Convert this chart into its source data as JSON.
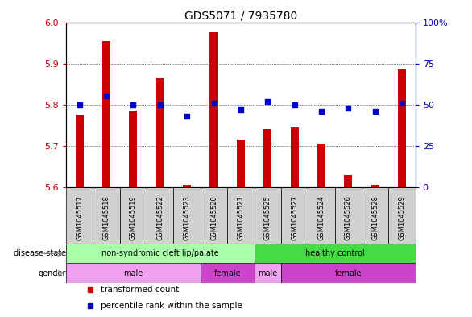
{
  "title": "GDS5071 / 7935780",
  "samples": [
    "GSM1045517",
    "GSM1045518",
    "GSM1045519",
    "GSM1045522",
    "GSM1045523",
    "GSM1045520",
    "GSM1045521",
    "GSM1045525",
    "GSM1045527",
    "GSM1045524",
    "GSM1045526",
    "GSM1045528",
    "GSM1045529"
  ],
  "transformed_count": [
    5.775,
    5.955,
    5.785,
    5.865,
    5.605,
    5.975,
    5.715,
    5.74,
    5.745,
    5.705,
    5.63,
    5.605,
    5.885
  ],
  "percentile_rank": [
    50,
    55,
    50,
    50,
    43,
    51,
    47,
    52,
    50,
    46,
    48,
    46,
    51
  ],
  "ylim_left": [
    5.6,
    6.0
  ],
  "ylim_right": [
    0,
    100
  ],
  "yticks_left": [
    5.6,
    5.7,
    5.8,
    5.9,
    6.0
  ],
  "yticks_right": [
    0,
    25,
    50,
    75,
    100
  ],
  "bar_color": "#cc0000",
  "dot_color": "#0000cc",
  "bar_width": 0.3,
  "disease_state_groups": [
    {
      "label": "non-syndromic cleft lip/palate",
      "start": 0,
      "end": 7,
      "color": "#aaffaa"
    },
    {
      "label": "healthy control",
      "start": 7,
      "end": 13,
      "color": "#44dd44"
    }
  ],
  "gender_groups": [
    {
      "label": "male",
      "start": 0,
      "end": 5,
      "color": "#f0a0f0"
    },
    {
      "label": "female",
      "start": 5,
      "end": 7,
      "color": "#cc44cc"
    },
    {
      "label": "male",
      "start": 7,
      "end": 8,
      "color": "#f0a0f0"
    },
    {
      "label": "female",
      "start": 8,
      "end": 13,
      "color": "#cc44cc"
    }
  ],
  "sample_label_bg": "#d0d0d0",
  "legend_items": [
    {
      "label": "transformed count",
      "color": "#cc0000"
    },
    {
      "label": "percentile rank within the sample",
      "color": "#0000cc"
    }
  ]
}
